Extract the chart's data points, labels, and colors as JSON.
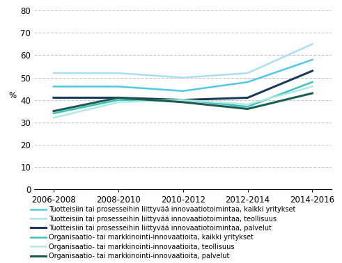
{
  "x_labels": [
    "2006-2008",
    "2008-2010",
    "2010-2012",
    "2012-2014",
    "2014-2016"
  ],
  "x_values": [
    0,
    1,
    2,
    3,
    4
  ],
  "series": [
    {
      "label": "Tuotteisiin tai prosesseihin liittyvää innovaatiotoimintaa, kaikki yritykset",
      "color": "#4FC8E8",
      "linewidth": 1.8,
      "linestyle": "solid",
      "values": [
        46,
        46,
        44,
        48,
        58
      ]
    },
    {
      "label": "Tuotteisiin tai prosesseihin liittyvää innovaatiotoimintaa, teollisuus",
      "color": "#AADFF0",
      "linewidth": 1.8,
      "linestyle": "solid",
      "values": [
        52,
        52,
        50,
        52,
        65
      ]
    },
    {
      "label": "Tuotteisiin tai prosesseihin liittyvää innovaatiotoimintaa, palvelut",
      "color": "#1A3A5C",
      "linewidth": 2.2,
      "linestyle": "solid",
      "values": [
        41,
        41,
        40,
        41,
        53
      ]
    },
    {
      "label": "Organisaatio- tai markkinointi-innovaatioita, kaikki yritykset",
      "color": "#3CBFBF",
      "linewidth": 1.8,
      "linestyle": "solid",
      "values": [
        34,
        40,
        40,
        37,
        48
      ]
    },
    {
      "label": "Organisaatio- tai markkinointi-innovaatioita, teollisuus",
      "color": "#B0EAE0",
      "linewidth": 1.8,
      "linestyle": "solid",
      "values": [
        32,
        39,
        40,
        38,
        46
      ]
    },
    {
      "label": "Organisaatio- tai markkinointi-innovaatioita, palvelut",
      "color": "#1A5C50",
      "linewidth": 2.2,
      "linestyle": "solid",
      "values": [
        35,
        41,
        39,
        36,
        43
      ]
    }
  ],
  "ylabel": "%",
  "ylim": [
    0,
    80
  ],
  "yticks": [
    0,
    10,
    20,
    30,
    40,
    50,
    60,
    70,
    80
  ],
  "grid_color": "#C8C8C8",
  "grid_linestyle": "dashed",
  "background_color": "#ffffff",
  "legend_fontsize": 7.0,
  "axis_fontsize": 8.5
}
